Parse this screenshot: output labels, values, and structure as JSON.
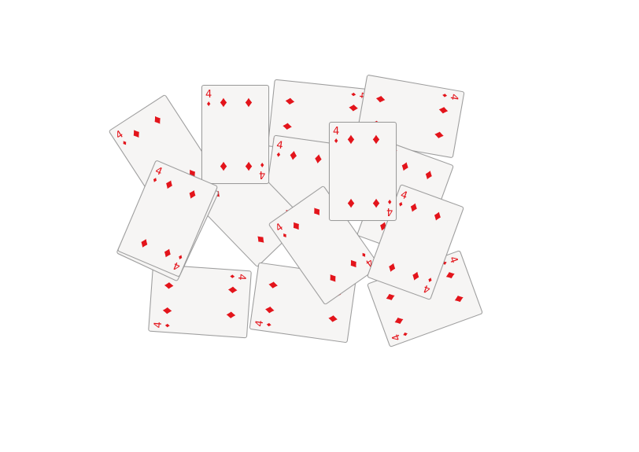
{
  "game": {
    "suit_color": "#e3141b",
    "card_back_color": "#f6f5f4",
    "suit_symbol": "♦",
    "cards": [
      {
        "rank": "4",
        "suit": "diamonds"
      },
      {
        "rank": "4",
        "suit": "diamonds"
      },
      {
        "rank": "4",
        "suit": "diamonds"
      },
      {
        "rank": "4",
        "suit": "diamonds"
      },
      {
        "rank": "4",
        "suit": "diamonds"
      },
      {
        "rank": "4",
        "suit": "diamonds"
      },
      {
        "rank": "4",
        "suit": "diamonds"
      },
      {
        "rank": "4",
        "suit": "diamonds"
      },
      {
        "rank": "4",
        "suit": "diamonds"
      },
      {
        "rank": "4",
        "suit": "diamonds"
      },
      {
        "rank": "4",
        "suit": "diamonds"
      },
      {
        "rank": "4",
        "suit": "diamonds"
      },
      {
        "rank": "4",
        "suit": "diamonds"
      },
      {
        "rank": "4",
        "suit": "diamonds"
      },
      {
        "rank": "4",
        "suit": "diamonds"
      }
    ]
  }
}
